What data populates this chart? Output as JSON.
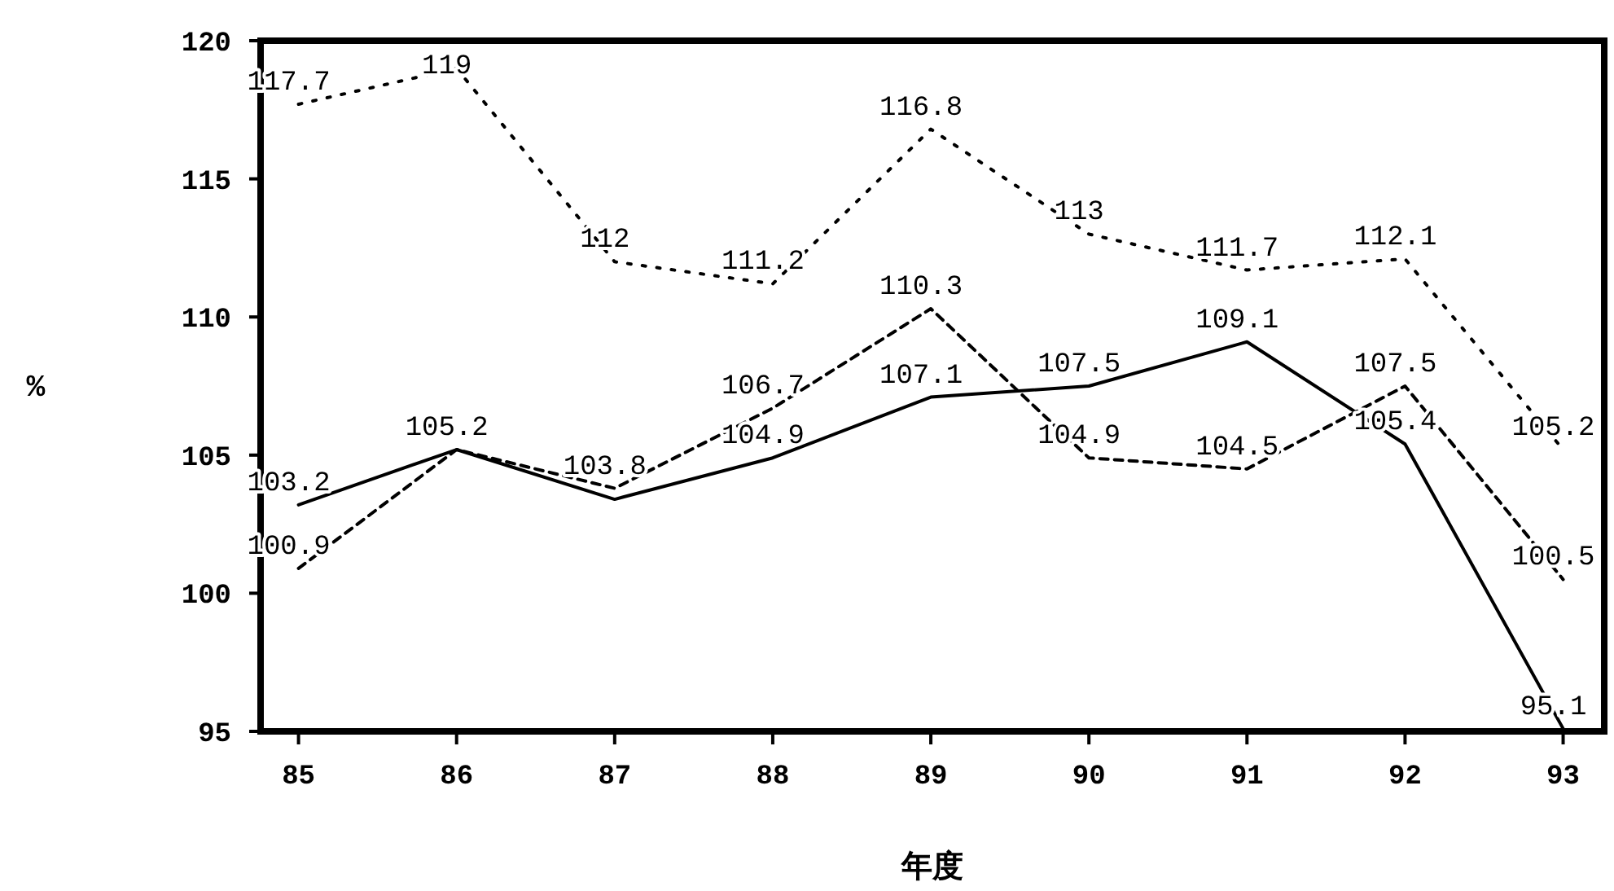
{
  "chart_data": {
    "type": "line",
    "xlabel": "年度",
    "ylabel": "%",
    "categories": [
      "85",
      "86",
      "87",
      "88",
      "89",
      "90",
      "91",
      "92",
      "93"
    ],
    "ylim": [
      95,
      120
    ],
    "yticks": [
      95,
      100,
      105,
      110,
      115,
      120
    ],
    "grid": false,
    "series": [
      {
        "color": "#000000",
        "line_style": "dotted",
        "values": [
          117.7,
          119,
          112,
          111.2,
          116.8,
          113,
          111.7,
          112.1,
          105.2
        ],
        "value_labels": [
          "117.7",
          "119",
          "112",
          "111.2",
          "116.8",
          "113",
          "111.7",
          "112.1",
          "105.2"
        ]
      },
      {
        "color": "#000000",
        "line_style": "dashed",
        "values": [
          100.9,
          105.2,
          103.8,
          106.7,
          110.3,
          104.9,
          104.5,
          107.5,
          100.5
        ],
        "value_labels": [
          "100.9",
          null,
          "103.8",
          "106.7",
          "110.3",
          "104.9",
          "104.5",
          "107.5",
          "100.5"
        ]
      },
      {
        "color": "#000000",
        "line_style": "solid",
        "values": [
          103.2,
          105.2,
          103.4,
          104.9,
          107.1,
          107.5,
          109.1,
          105.4,
          95.1
        ],
        "value_labels": [
          "103.2",
          "105.2",
          null,
          "104.9",
          "107.1",
          "107.5",
          "109.1",
          "105.4",
          "95.1"
        ]
      }
    ]
  }
}
